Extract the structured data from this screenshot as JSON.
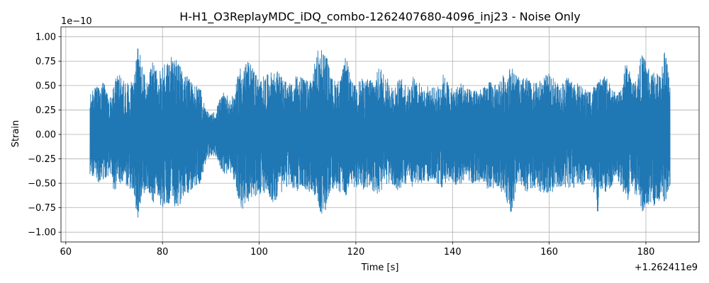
{
  "chart_data": {
    "type": "line",
    "title": "H-H1_O3ReplayMDC_iDQ_combo-1262407680-4096_inj23 - Noise Only",
    "xlabel": "Time [s]",
    "ylabel": "Strain",
    "x_offset_label": "+1.262411e9",
    "y_scale_label": "1e−10",
    "xlim": [
      59.0,
      191.0
    ],
    "ylim": [
      -1.1,
      1.1
    ],
    "x_ticks": [
      60,
      80,
      100,
      120,
      140,
      160,
      180
    ],
    "x_tick_labels": [
      "60",
      "80",
      "100",
      "120",
      "140",
      "160",
      "180"
    ],
    "y_ticks": [
      -1.0,
      -0.75,
      -0.5,
      -0.25,
      0.0,
      0.25,
      0.5,
      0.75,
      1.0
    ],
    "y_tick_labels": [
      "−1.00",
      "−0.75",
      "−0.50",
      "−0.25",
      "0.00",
      "0.25",
      "0.50",
      "0.75",
      "1.00"
    ],
    "grid": true,
    "series": [
      {
        "color": "#1f77b4",
        "envelope": {
          "time": [
            65,
            66,
            67,
            68,
            69,
            70,
            71,
            72,
            73,
            74,
            75,
            76,
            77,
            78,
            79,
            80,
            81,
            82,
            83,
            84,
            85,
            86,
            87,
            88,
            89,
            90,
            91,
            92,
            93,
            94,
            95,
            96,
            97,
            98,
            99,
            100,
            101,
            102,
            103,
            104,
            105,
            106,
            107,
            108,
            109,
            110,
            111,
            112,
            113,
            114,
            115,
            116,
            117,
            118,
            119,
            120,
            121,
            122,
            123,
            124,
            125,
            126,
            127,
            128,
            129,
            130,
            131,
            132,
            133,
            134,
            135,
            136,
            137,
            138,
            139,
            140,
            141,
            142,
            143,
            144,
            145,
            146,
            147,
            148,
            149,
            150,
            151,
            152,
            153,
            154,
            155,
            156,
            157,
            158,
            159,
            160,
            161,
            162,
            163,
            164,
            165,
            166,
            167,
            168,
            169,
            170,
            171,
            172,
            173,
            174,
            175,
            176,
            177,
            178,
            179,
            180,
            181,
            182,
            183,
            184,
            185
          ],
          "max": [
            0.4,
            0.5,
            0.48,
            0.55,
            0.35,
            0.55,
            0.62,
            0.55,
            0.52,
            0.6,
            0.95,
            0.65,
            0.55,
            0.78,
            0.6,
            0.72,
            0.78,
            0.8,
            0.75,
            0.68,
            0.6,
            0.55,
            0.52,
            0.45,
            0.25,
            0.2,
            0.25,
            0.38,
            0.45,
            0.35,
            0.45,
            0.7,
            0.72,
            0.75,
            0.68,
            0.55,
            0.6,
            0.62,
            0.66,
            0.65,
            0.55,
            0.55,
            0.5,
            0.66,
            0.58,
            0.55,
            0.62,
            0.85,
            0.92,
            0.8,
            0.58,
            0.55,
            0.6,
            0.82,
            0.55,
            0.5,
            0.58,
            0.55,
            0.6,
            0.58,
            0.72,
            0.6,
            0.55,
            0.5,
            0.58,
            0.55,
            0.48,
            0.62,
            0.55,
            0.45,
            0.5,
            0.48,
            0.5,
            0.62,
            0.55,
            0.45,
            0.5,
            0.55,
            0.48,
            0.45,
            0.5,
            0.45,
            0.52,
            0.55,
            0.5,
            0.6,
            0.62,
            0.7,
            0.65,
            0.55,
            0.6,
            0.55,
            0.52,
            0.55,
            0.6,
            0.62,
            0.58,
            0.5,
            0.55,
            0.6,
            0.55,
            0.52,
            0.48,
            0.45,
            0.5,
            0.52,
            0.6,
            0.58,
            0.48,
            0.4,
            0.52,
            0.78,
            0.58,
            0.55,
            0.82,
            0.78,
            0.6,
            0.7,
            0.6,
            0.95,
            0.5
          ],
          "min": [
            -0.42,
            -0.45,
            -0.5,
            -0.48,
            -0.4,
            -0.6,
            -0.55,
            -0.5,
            -0.55,
            -0.62,
            -0.88,
            -0.62,
            -0.55,
            -0.72,
            -0.62,
            -0.78,
            -0.7,
            -0.72,
            -0.75,
            -0.7,
            -0.62,
            -0.58,
            -0.55,
            -0.48,
            -0.3,
            -0.22,
            -0.22,
            -0.35,
            -0.42,
            -0.38,
            -0.5,
            -0.78,
            -0.75,
            -0.7,
            -0.65,
            -0.62,
            -0.6,
            -0.62,
            -0.72,
            -0.62,
            -0.58,
            -0.52,
            -0.55,
            -0.6,
            -0.55,
            -0.6,
            -0.58,
            -0.68,
            -0.85,
            -0.78,
            -0.55,
            -0.58,
            -0.62,
            -0.65,
            -0.52,
            -0.55,
            -0.55,
            -0.58,
            -0.55,
            -0.6,
            -0.62,
            -0.55,
            -0.5,
            -0.55,
            -0.6,
            -0.52,
            -0.5,
            -0.55,
            -0.52,
            -0.48,
            -0.5,
            -0.45,
            -0.52,
            -0.55,
            -0.5,
            -0.48,
            -0.55,
            -0.5,
            -0.45,
            -0.5,
            -0.48,
            -0.52,
            -0.55,
            -0.58,
            -0.52,
            -0.58,
            -0.62,
            -0.88,
            -0.6,
            -0.55,
            -0.58,
            -0.6,
            -0.55,
            -0.58,
            -0.62,
            -0.58,
            -0.6,
            -0.55,
            -0.52,
            -0.58,
            -0.55,
            -0.5,
            -0.52,
            -0.48,
            -0.55,
            -0.82,
            -0.58,
            -0.6,
            -0.52,
            -0.45,
            -0.55,
            -0.72,
            -0.58,
            -0.62,
            -0.8,
            -0.78,
            -0.72,
            -0.75,
            -0.65,
            -0.7,
            -0.52
          ]
        }
      }
    ]
  }
}
